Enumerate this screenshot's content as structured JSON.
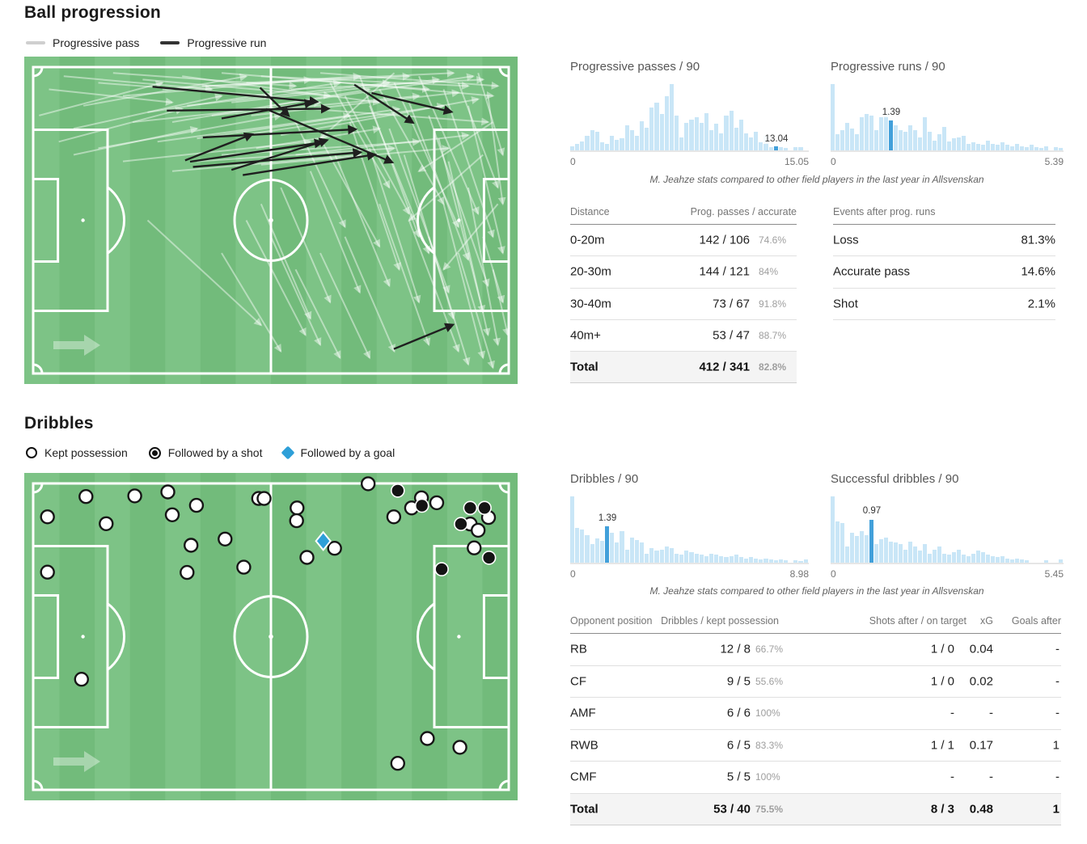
{
  "ball_progression": {
    "title": "Ball progression",
    "legend": [
      {
        "label": "Progressive pass"
      },
      {
        "label": "Progressive run"
      }
    ]
  },
  "dribbles_section": {
    "title": "Dribbles",
    "legend": [
      {
        "label": "Kept possession"
      },
      {
        "label": "Followed by a shot"
      },
      {
        "label": "Followed by a goal"
      }
    ]
  },
  "caption": "M. Jeahze stats compared to other field players in the last year in Allsvenskan",
  "chart_data": [
    {
      "type": "bar",
      "title": "Progressive passes / 90",
      "xlim": [
        0,
        15.05
      ],
      "x_min_label": "0",
      "x_max_label": "15.05",
      "marker_value": 13.04,
      "marker_label": "13.04",
      "bar_color": "#c9e6f7",
      "marker_color": "#42a0da",
      "legend_position": "none",
      "grid": false,
      "values": [
        0.06,
        0.1,
        0.14,
        0.22,
        0.3,
        0.28,
        0.12,
        0.1,
        0.22,
        0.16,
        0.18,
        0.38,
        0.3,
        0.22,
        0.44,
        0.34,
        0.65,
        0.72,
        0.55,
        0.82,
        1.0,
        0.52,
        0.2,
        0.42,
        0.46,
        0.5,
        0.42,
        0.56,
        0.3,
        0.4,
        0.26,
        0.52,
        0.6,
        0.34,
        0.46,
        0.26,
        0.2,
        0.28,
        0.12,
        0.22,
        0.05,
        0.06,
        0.05,
        0.04,
        0.0,
        0.05,
        0.05,
        0.0
      ]
    },
    {
      "type": "bar",
      "title": "Progressive runs / 90",
      "xlim": [
        0,
        5.39
      ],
      "x_min_label": "0",
      "x_max_label": "5.39",
      "marker_value": 1.39,
      "marker_label": "1.39",
      "bar_color": "#c9e6f7",
      "marker_color": "#42a0da",
      "legend_position": "none",
      "grid": false,
      "values": [
        1.0,
        0.25,
        0.3,
        0.42,
        0.33,
        0.25,
        0.5,
        0.55,
        0.52,
        0.3,
        0.5,
        0.55,
        0.45,
        0.38,
        0.3,
        0.28,
        0.38,
        0.3,
        0.2,
        0.5,
        0.28,
        0.15,
        0.25,
        0.35,
        0.14,
        0.18,
        0.2,
        0.22,
        0.1,
        0.12,
        0.1,
        0.08,
        0.15,
        0.1,
        0.08,
        0.12,
        0.08,
        0.06,
        0.1,
        0.06,
        0.05,
        0.08,
        0.05,
        0.04,
        0.06,
        0.0,
        0.05,
        0.04
      ]
    },
    {
      "type": "bar",
      "title": "Dribbles / 90",
      "xlim": [
        0,
        8.98
      ],
      "x_min_label": "0",
      "x_max_label": "8.98",
      "marker_value": 1.39,
      "marker_label": "1.39",
      "bar_color": "#c9e6f7",
      "marker_color": "#42a0da",
      "legend_position": "none",
      "grid": false,
      "values": [
        1.0,
        0.52,
        0.5,
        0.42,
        0.28,
        0.36,
        0.33,
        0.55,
        0.45,
        0.3,
        0.48,
        0.2,
        0.38,
        0.34,
        0.3,
        0.14,
        0.22,
        0.18,
        0.2,
        0.25,
        0.22,
        0.14,
        0.12,
        0.18,
        0.16,
        0.14,
        0.12,
        0.1,
        0.14,
        0.12,
        0.1,
        0.08,
        0.1,
        0.12,
        0.08,
        0.06,
        0.08,
        0.06,
        0.05,
        0.06,
        0.05,
        0.04,
        0.05,
        0.04,
        0.0,
        0.04,
        0.03,
        0.05
      ]
    },
    {
      "type": "bar",
      "title": "Successful dribbles / 90",
      "xlim": [
        0,
        5.45
      ],
      "x_min_label": "0",
      "x_max_label": "5.45",
      "marker_value": 0.97,
      "marker_label": "0.97",
      "bar_color": "#c9e6f7",
      "marker_color": "#42a0da",
      "legend_position": "none",
      "grid": false,
      "values": [
        1.0,
        0.62,
        0.6,
        0.25,
        0.45,
        0.4,
        0.48,
        0.42,
        0.65,
        0.28,
        0.35,
        0.38,
        0.32,
        0.3,
        0.28,
        0.2,
        0.32,
        0.25,
        0.18,
        0.28,
        0.14,
        0.2,
        0.25,
        0.14,
        0.12,
        0.16,
        0.2,
        0.12,
        0.1,
        0.14,
        0.18,
        0.16,
        0.12,
        0.1,
        0.08,
        0.1,
        0.06,
        0.05,
        0.06,
        0.05,
        0.04,
        0.0,
        0.0,
        0.0,
        0.04,
        0.0,
        0.0,
        0.05
      ]
    }
  ],
  "progression_table": {
    "col1": "Distance",
    "col2": "Prog. passes / accurate",
    "rows": [
      {
        "label": "0-20m",
        "value": "142 / 106",
        "pct": "74.6%"
      },
      {
        "label": "20-30m",
        "value": "144 / 121",
        "pct": "84%"
      },
      {
        "label": "30-40m",
        "value": "73 / 67",
        "pct": "91.8%"
      },
      {
        "label": "40m+",
        "value": "53 / 47",
        "pct": "88.7%"
      }
    ],
    "total": {
      "label": "Total",
      "value": "412 / 341",
      "pct": "82.8%"
    }
  },
  "events_table": {
    "header": "Events after prog. runs",
    "rows": [
      {
        "label": "Loss",
        "value": "81.3%"
      },
      {
        "label": "Accurate pass",
        "value": "14.6%"
      },
      {
        "label": "Shot",
        "value": "2.1%"
      }
    ]
  },
  "dribbles_table": {
    "headers": [
      "Opponent position",
      "Dribbles / kept possession",
      "Shots after / on target",
      "xG",
      "Goals after"
    ],
    "rows": [
      {
        "pos": "RB",
        "value": "12 / 8",
        "pct": "66.7%",
        "shots": "1 / 0",
        "xg": "0.04",
        "goals": "-"
      },
      {
        "pos": "CF",
        "value": "9 / 5",
        "pct": "55.6%",
        "shots": "1 / 0",
        "xg": "0.02",
        "goals": "-"
      },
      {
        "pos": "AMF",
        "value": "6 / 6",
        "pct": "100%",
        "shots": "-",
        "xg": "-",
        "goals": "-"
      },
      {
        "pos": "RWB",
        "value": "6 / 5",
        "pct": "83.3%",
        "shots": "1 / 1",
        "xg": "0.17",
        "goals": "1"
      },
      {
        "pos": "CMF",
        "value": "5 / 5",
        "pct": "100%",
        "shots": "-",
        "xg": "-",
        "goals": "-"
      }
    ],
    "total": {
      "pos": "Total",
      "value": "53 / 40",
      "pct": "75.5%",
      "shots": "8 / 3",
      "xg": "0.48",
      "goals": "1"
    }
  },
  "pitch": {
    "stripe_light": "#7dc386",
    "stripe_dark": "#72bb7b",
    "line_color": "#ffffff",
    "pass_color": "rgba(255,255,255,0.45)",
    "run_color": "#1f1f1f",
    "kept_fill": "#ffffff",
    "kept_stroke": "#161616",
    "shot_fill": "#141414",
    "goal_fill": "#2e9fd8",
    "progression": {
      "pass_arrows": [
        [
          3,
          18,
          28,
          8
        ],
        [
          5,
          10,
          30,
          14
        ],
        [
          8,
          6,
          38,
          10
        ],
        [
          10,
          22,
          40,
          12
        ],
        [
          12,
          15,
          45,
          6
        ],
        [
          15,
          8,
          50,
          12
        ],
        [
          15,
          28,
          52,
          18
        ],
        [
          18,
          5,
          55,
          9
        ],
        [
          20,
          12,
          58,
          7
        ],
        [
          22,
          20,
          60,
          14
        ],
        [
          24,
          7,
          62,
          12
        ],
        [
          25,
          17,
          64,
          8
        ],
        [
          27,
          26,
          66,
          18
        ],
        [
          28,
          10,
          68,
          6
        ],
        [
          30,
          20,
          70,
          10
        ],
        [
          32,
          6,
          72,
          14
        ],
        [
          33,
          15,
          74,
          8
        ],
        [
          35,
          25,
          76,
          16
        ],
        [
          36,
          9,
          78,
          6
        ],
        [
          38,
          18,
          80,
          12
        ],
        [
          40,
          5,
          82,
          10
        ],
        [
          42,
          14,
          84,
          7
        ],
        [
          44,
          24,
          85,
          15
        ],
        [
          45,
          8,
          87,
          5
        ],
        [
          46,
          18,
          88,
          11
        ],
        [
          48,
          6,
          90,
          9
        ],
        [
          50,
          15,
          91,
          6
        ],
        [
          52,
          24,
          92,
          13
        ],
        [
          54,
          10,
          93,
          7
        ],
        [
          35,
          32,
          75,
          28
        ],
        [
          30,
          35,
          68,
          30
        ],
        [
          40,
          30,
          80,
          26
        ],
        [
          20,
          32,
          58,
          26
        ],
        [
          48,
          33,
          86,
          28
        ],
        [
          55,
          30,
          90,
          24
        ],
        [
          10,
          30,
          35,
          22
        ],
        [
          7,
          26,
          32,
          16
        ],
        [
          57,
          7,
          95,
          12
        ],
        [
          58,
          16,
          94,
          20
        ],
        [
          60,
          5,
          96,
          9
        ],
        [
          62,
          8,
          74,
          40
        ],
        [
          65,
          12,
          78,
          48
        ],
        [
          68,
          6,
          80,
          55
        ],
        [
          70,
          15,
          82,
          60
        ],
        [
          72,
          10,
          85,
          45
        ],
        [
          75,
          8,
          88,
          52
        ],
        [
          78,
          14,
          90,
          62
        ],
        [
          80,
          6,
          92,
          48
        ],
        [
          82,
          18,
          94,
          70
        ],
        [
          85,
          10,
          95,
          55
        ],
        [
          88,
          8,
          96,
          40
        ],
        [
          90,
          15,
          97,
          60
        ],
        [
          66,
          20,
          76,
          65
        ],
        [
          74,
          22,
          86,
          72
        ],
        [
          84,
          25,
          93,
          78
        ],
        [
          60,
          25,
          72,
          58
        ],
        [
          63,
          30,
          74,
          70
        ],
        [
          70,
          28,
          80,
          75
        ],
        [
          77,
          30,
          87,
          80
        ],
        [
          86,
          32,
          94,
          85
        ],
        [
          92,
          5,
          97,
          30
        ],
        [
          94,
          12,
          97,
          45
        ],
        [
          55,
          20,
          65,
          52
        ],
        [
          58,
          35,
          68,
          72
        ],
        [
          52,
          40,
          62,
          75
        ],
        [
          48,
          45,
          58,
          80
        ],
        [
          45,
          50,
          57,
          85
        ],
        [
          72,
          45,
          82,
          88
        ],
        [
          78,
          50,
          88,
          90
        ],
        [
          85,
          45,
          93,
          92
        ],
        [
          90,
          40,
          96,
          88
        ],
        [
          65,
          55,
          75,
          90
        ],
        [
          60,
          60,
          70,
          92
        ],
        [
          82,
          55,
          90,
          94
        ],
        [
          88,
          60,
          95,
          95
        ],
        [
          95,
          20,
          80,
          35
        ],
        [
          93,
          30,
          78,
          50
        ],
        [
          96,
          45,
          85,
          65
        ],
        [
          75,
          5,
          60,
          25
        ],
        [
          50,
          55,
          60,
          88
        ],
        [
          55,
          65,
          64,
          92
        ],
        [
          40,
          60,
          52,
          90
        ],
        [
          25,
          50,
          48,
          82
        ],
        [
          93,
          55,
          97,
          75
        ],
        [
          95,
          65,
          98,
          85
        ],
        [
          47,
          28,
          72,
          22
        ]
      ],
      "run_arrows": [
        [
          26,
          9.2,
          59.4,
          13.8
        ],
        [
          28.9,
          16.5,
          61.7,
          15.9
        ],
        [
          66.9,
          8.6,
          78.8,
          20.2
        ],
        [
          70.4,
          11.1,
          86.6,
          16.9
        ],
        [
          47.8,
          9.5,
          53.6,
          18.1
        ],
        [
          33.6,
          32.1,
          60.4,
          26.2
        ],
        [
          34.2,
          33.7,
          68.2,
          29.2
        ],
        [
          42,
          34.6,
          61.4,
          25.5
        ],
        [
          44.3,
          36.2,
          71.1,
          29.9
        ],
        [
          32.6,
          31.7,
          46.2,
          23.7
        ],
        [
          36.2,
          24.7,
          67.2,
          22.2
        ],
        [
          40,
          18.9,
          58.4,
          14
        ],
        [
          49,
          16,
          74.6,
          32.3
        ],
        [
          74.9,
          89.3,
          86.9,
          81.9
        ]
      ]
    },
    "dribbles": {
      "kept": [
        [
          12.5,
          7.2
        ],
        [
          22.4,
          7.0
        ],
        [
          29.1,
          5.8
        ],
        [
          4.7,
          13.4
        ],
        [
          16.6,
          15.5
        ],
        [
          30.0,
          12.8
        ],
        [
          34.9,
          9.9
        ],
        [
          47.5,
          7.8
        ],
        [
          48.6,
          7.8
        ],
        [
          33.8,
          22.1
        ],
        [
          40.7,
          20.2
        ],
        [
          4.7,
          30.3
        ],
        [
          33.0,
          30.4
        ],
        [
          44.5,
          28.8
        ],
        [
          55.3,
          10.7
        ],
        [
          55.2,
          14.6
        ],
        [
          57.3,
          25.8
        ],
        [
          62.9,
          23.0
        ],
        [
          69.7,
          3.3
        ],
        [
          74.9,
          13.4
        ],
        [
          78.5,
          10.7
        ],
        [
          80.5,
          7.6
        ],
        [
          83.6,
          9.1
        ],
        [
          90.4,
          15.6
        ],
        [
          92.0,
          17.5
        ],
        [
          94.1,
          13.6
        ],
        [
          91.2,
          22.9
        ],
        [
          11.6,
          63.0
        ],
        [
          81.7,
          81.1
        ],
        [
          88.3,
          83.8
        ],
        [
          75.7,
          88.7
        ]
      ],
      "shot": [
        [
          75.7,
          5.4
        ],
        [
          80.6,
          10.0
        ],
        [
          88.5,
          15.6
        ],
        [
          90.4,
          10.7
        ],
        [
          93.3,
          10.7
        ],
        [
          94.2,
          25.9
        ],
        [
          84.6,
          29.4
        ]
      ],
      "goal": [
        [
          60.6,
          20.8
        ]
      ]
    }
  }
}
